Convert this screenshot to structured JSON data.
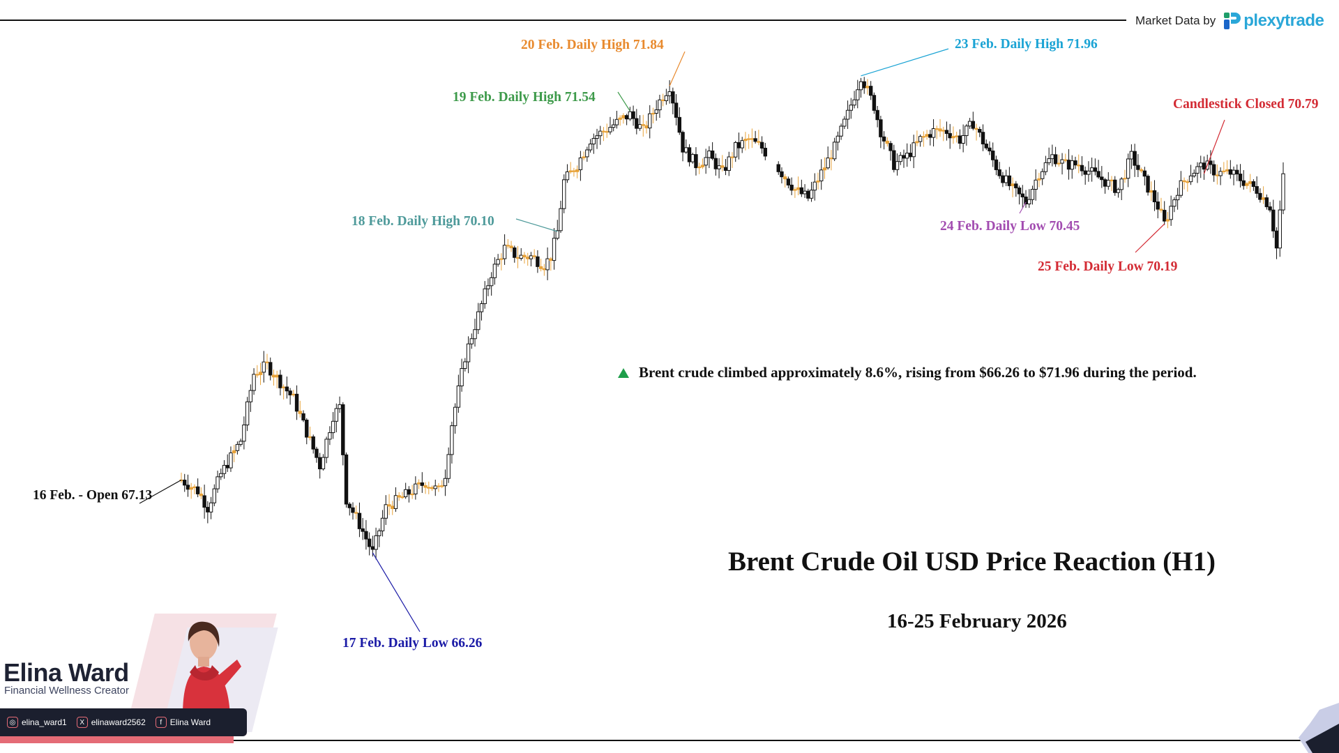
{
  "brand": {
    "market_data_label": "Market Data by",
    "logo_text": "plexytrade",
    "logo_color": "#2aa7d8"
  },
  "chart_data": {
    "type": "candlestick",
    "title": "Brent Crude Oil USD Price Reaction (H1)",
    "subtitle": "16-25 February 2026",
    "ylim": [
      65.7,
      72.2
    ],
    "annotations": [
      {
        "id": "open16",
        "label": "16 Feb. - Open 67.13",
        "color": "#111111",
        "value": 67.13
      },
      {
        "id": "low17",
        "label": "17 Feb. Daily Low 66.26",
        "color": "#1a1aa6",
        "value": 66.26
      },
      {
        "id": "high18",
        "label": "18 Feb. Daily High 70.10",
        "color": "#4e9a9a",
        "value": 70.1
      },
      {
        "id": "high19",
        "label": "19 Feb. Daily High 71.54",
        "color": "#3d9a4a",
        "value": 71.54
      },
      {
        "id": "high20",
        "label": "20 Feb. Daily High 71.84",
        "color": "#e88a2e",
        "value": 71.84
      },
      {
        "id": "high23",
        "label": "23 Feb. Daily High 71.96",
        "color": "#1aa3d4",
        "value": 71.96
      },
      {
        "id": "low24",
        "label": "24 Feb. Daily Low 70.45",
        "color": "#a24cb0",
        "value": 70.45
      },
      {
        "id": "low25",
        "label": "25 Feb. Daily Low 70.19",
        "color": "#d32b34",
        "value": 70.19
      },
      {
        "id": "close",
        "label": "Candlestick Closed 70.79",
        "color": "#d32b34",
        "value": 70.79
      }
    ],
    "note": "Brent crude climbed approximately 8.6%, rising from $66.26 to $71.96 during the period.",
    "colors": {
      "up": "#ffffff",
      "down": "#111111",
      "doji": "#e8a33a"
    },
    "anchors": [
      [
        0,
        67.13
      ],
      [
        5,
        67.0
      ],
      [
        8,
        66.8
      ],
      [
        12,
        67.2
      ],
      [
        18,
        67.6
      ],
      [
        22,
        68.4
      ],
      [
        26,
        68.5
      ],
      [
        30,
        68.3
      ],
      [
        34,
        68.1
      ],
      [
        38,
        67.7
      ],
      [
        42,
        67.3
      ],
      [
        46,
        67.9
      ],
      [
        48,
        68.0
      ],
      [
        50,
        66.9
      ],
      [
        54,
        66.6
      ],
      [
        58,
        66.26
      ],
      [
        62,
        66.8
      ],
      [
        66,
        66.9
      ],
      [
        70,
        67.0
      ],
      [
        74,
        67.1
      ],
      [
        78,
        67.0
      ],
      [
        80,
        67.2
      ],
      [
        82,
        67.8
      ],
      [
        86,
        68.6
      ],
      [
        90,
        69.1
      ],
      [
        94,
        69.6
      ],
      [
        98,
        69.9
      ],
      [
        102,
        69.8
      ],
      [
        106,
        69.8
      ],
      [
        110,
        69.7
      ],
      [
        112,
        69.8
      ],
      [
        114,
        70.1
      ],
      [
        116,
        70.7
      ],
      [
        120,
        70.9
      ],
      [
        124,
        71.2
      ],
      [
        128,
        71.3
      ],
      [
        132,
        71.4
      ],
      [
        136,
        71.5
      ],
      [
        140,
        71.3
      ],
      [
        144,
        71.6
      ],
      [
        148,
        71.84
      ],
      [
        150,
        71.5
      ],
      [
        152,
        71.1
      ],
      [
        156,
        70.9
      ],
      [
        160,
        71.0
      ],
      [
        164,
        70.8
      ],
      [
        168,
        71.1
      ],
      [
        172,
        71.2
      ],
      [
        176,
        71.1
      ],
      [
        182,
        70.8
      ],
      [
        186,
        70.6
      ],
      [
        190,
        70.5
      ],
      [
        194,
        70.8
      ],
      [
        198,
        71.1
      ],
      [
        202,
        71.5
      ],
      [
        206,
        71.96
      ],
      [
        210,
        71.6
      ],
      [
        212,
        71.3
      ],
      [
        216,
        70.9
      ],
      [
        220,
        71.0
      ],
      [
        224,
        71.2
      ],
      [
        228,
        71.3
      ],
      [
        232,
        71.3
      ],
      [
        236,
        71.2
      ],
      [
        240,
        71.4
      ],
      [
        244,
        71.1
      ],
      [
        248,
        70.8
      ],
      [
        252,
        70.6
      ],
      [
        256,
        70.45
      ],
      [
        260,
        70.8
      ],
      [
        264,
        71.0
      ],
      [
        268,
        70.9
      ],
      [
        272,
        70.9
      ],
      [
        276,
        70.8
      ],
      [
        280,
        70.7
      ],
      [
        284,
        70.6
      ],
      [
        288,
        71.0
      ],
      [
        292,
        70.7
      ],
      [
        296,
        70.4
      ],
      [
        298,
        70.19
      ],
      [
        302,
        70.6
      ],
      [
        306,
        70.8
      ],
      [
        310,
        70.9
      ],
      [
        314,
        70.8
      ],
      [
        318,
        70.8
      ],
      [
        322,
        70.7
      ],
      [
        326,
        70.6
      ],
      [
        330,
        70.4
      ],
      [
        332,
        69.9
      ],
      [
        334,
        70.79
      ]
    ]
  },
  "creator": {
    "name": "Elina Ward",
    "role": "Financial Wellness Creator",
    "socials": [
      {
        "icon": "instagram-icon",
        "glyph": "◎",
        "handle": "elina_ward1"
      },
      {
        "icon": "x-icon",
        "glyph": "X",
        "handle": "elinaward2562"
      },
      {
        "icon": "facebook-icon",
        "glyph": "f",
        "handle": "Elina Ward"
      }
    ],
    "accent": "#e46b76"
  }
}
